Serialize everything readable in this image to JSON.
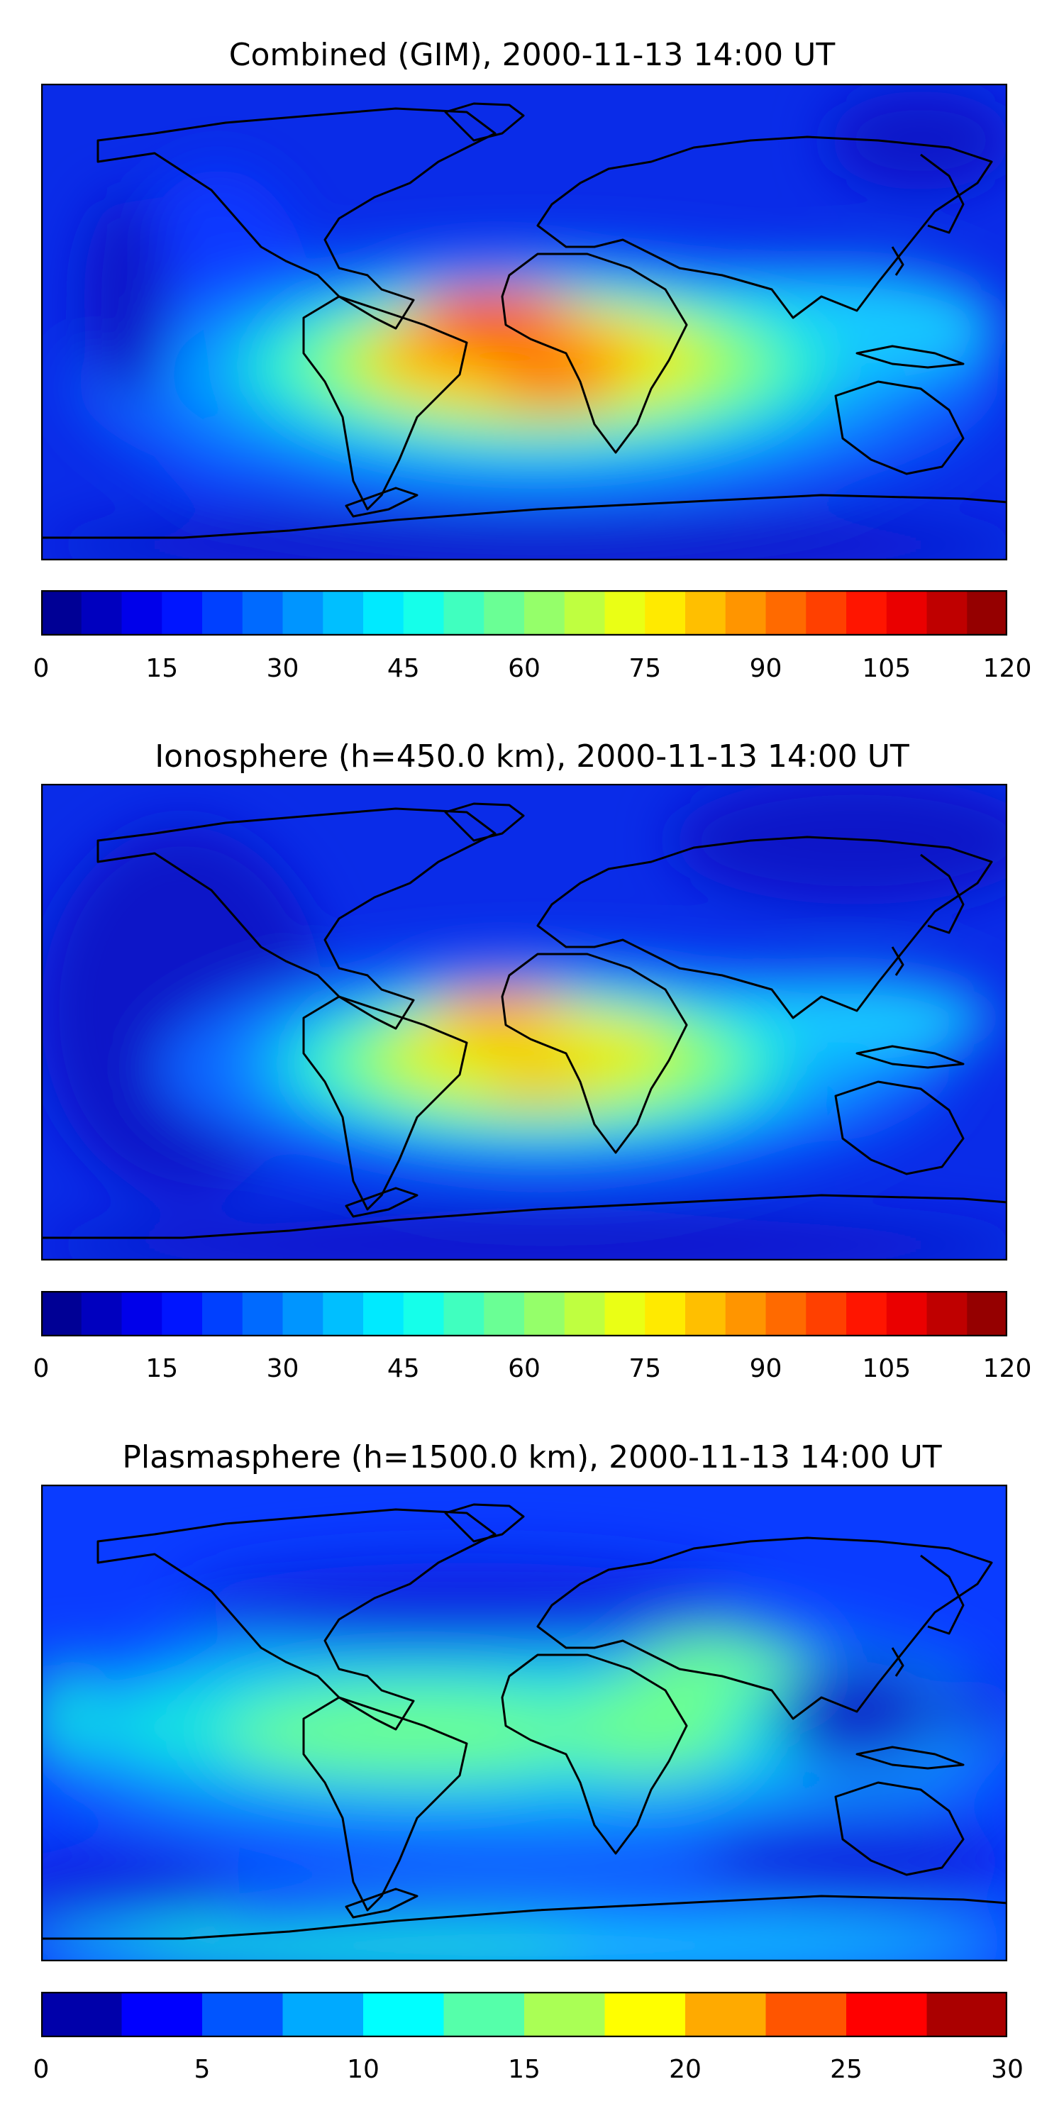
{
  "panels": [
    {
      "title": "Combined (GIM), 2000-11-13 14:00 UT",
      "colorbar": {
        "min": 0,
        "max": 120,
        "levels": 24,
        "tick_labels": [
          "0",
          "15",
          "30",
          "45",
          "60",
          "75",
          "90",
          "105",
          "120"
        ]
      }
    },
    {
      "title": "Ionosphere  (h=450.0 km), 2000-11-13 14:00 UT",
      "colorbar": {
        "min": 0,
        "max": 120,
        "levels": 24,
        "tick_labels": [
          "0",
          "15",
          "30",
          "45",
          "60",
          "75",
          "90",
          "105",
          "120"
        ]
      }
    },
    {
      "title": "Plasmasphere (h=1500.0 km), 2000-11-13 14:00 UT",
      "colorbar": {
        "min": 0,
        "max": 30,
        "levels": 12,
        "tick_labels": [
          "0",
          "5",
          "10",
          "15",
          "20",
          "25",
          "30"
        ]
      }
    }
  ],
  "colormap": "jet",
  "coastline_color": "#000000"
}
